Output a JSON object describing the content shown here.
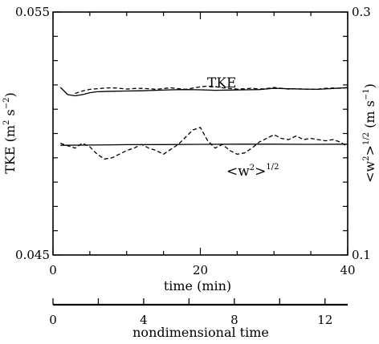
{
  "chart_data": {
    "type": "line",
    "x_axis": {
      "label": "time (min)",
      "lim": [
        0,
        40
      ],
      "ticks": [
        0,
        20,
        40
      ],
      "tick_labels": [
        "0",
        "20",
        "40"
      ],
      "minor_step": 5
    },
    "y_left": {
      "label_prefix": "TKE (m",
      "label_unit_mid": " s",
      "label_suffix": ")",
      "sup1": "2",
      "sup2": "−2",
      "lim": [
        0.045,
        0.055
      ],
      "ticks": [
        0.045,
        0.055
      ],
      "tick_labels": [
        "0.045",
        "0.055"
      ],
      "minor_step": 0.001
    },
    "y_right": {
      "label_prefix": "<w",
      "label_sup_a": "2",
      "label_mid": ">",
      "label_sup_b": "1/2",
      "label_unit": " (m s",
      "label_sup_c": "−1",
      "label_end": ")",
      "lim": [
        0.1,
        0.3
      ],
      "ticks": [
        0.1,
        0.3
      ],
      "tick_labels": [
        "0.1",
        "0.3"
      ],
      "minor_step": 0.02
    },
    "nondim_axis": {
      "label": "nondimensional time",
      "lim": [
        0,
        13
      ],
      "ticks": [
        0,
        4,
        8,
        12
      ],
      "tick_labels": [
        "0",
        "4",
        "8",
        "12"
      ],
      "minor_step": 2
    },
    "annotations": {
      "tke": "TKE",
      "w_open": "<w",
      "w_sup": "2",
      "w_close": ">",
      "w_exp": "1/2"
    },
    "series": [
      {
        "axis": "left",
        "style": "solid",
        "x": [
          1,
          1.5,
          2,
          3,
          4,
          5,
          6,
          8,
          10,
          12,
          14,
          16,
          18,
          20,
          22,
          24,
          26,
          28,
          30,
          32,
          34,
          36,
          38,
          40
        ],
        "y": [
          0.0519,
          0.05175,
          0.0516,
          0.05155,
          0.0516,
          0.05168,
          0.05172,
          0.05174,
          0.05175,
          0.05176,
          0.05178,
          0.0518,
          0.05181,
          0.0518,
          0.05178,
          0.05179,
          0.0518,
          0.05181,
          0.05186,
          0.05184,
          0.05183,
          0.05182,
          0.05185,
          0.05189
        ]
      },
      {
        "axis": "left",
        "style": "dashed",
        "x": [
          3,
          4,
          5,
          6,
          7,
          8,
          9,
          10,
          11,
          12,
          13,
          14,
          15,
          16,
          17,
          18,
          19,
          20,
          21,
          22,
          23,
          24,
          25,
          26,
          27,
          28,
          29,
          30,
          31,
          32,
          33,
          34,
          35,
          36,
          37,
          38,
          39,
          40
        ],
        "y": [
          0.05165,
          0.05175,
          0.05182,
          0.05184,
          0.05187,
          0.05188,
          0.05186,
          0.05183,
          0.05185,
          0.05186,
          0.05184,
          0.05182,
          0.05185,
          0.05188,
          0.05184,
          0.05182,
          0.05187,
          0.05192,
          0.05195,
          0.05193,
          0.05188,
          0.05185,
          0.05183,
          0.05184,
          0.05186,
          0.05183,
          0.05185,
          0.05189,
          0.05186,
          0.05183,
          0.05184,
          0.05183,
          0.05182,
          0.05183,
          0.05186,
          0.05187,
          0.05186,
          0.05188
        ]
      },
      {
        "axis": "right",
        "style": "solid",
        "x": [
          1,
          5,
          10,
          15,
          20,
          25,
          30,
          35,
          40
        ],
        "y": [
          0.1903,
          0.1905,
          0.1908,
          0.1909,
          0.1911,
          0.1912,
          0.1912,
          0.1911,
          0.1912
        ]
      },
      {
        "axis": "right",
        "style": "dashed",
        "x": [
          1,
          2,
          3,
          4,
          5,
          6,
          7,
          8,
          9,
          10,
          11,
          12,
          13,
          14,
          15,
          16,
          17,
          18,
          19,
          20,
          21,
          22,
          23,
          24,
          25,
          26,
          27,
          28,
          29,
          30,
          31,
          32,
          33,
          34,
          35,
          36,
          37,
          38,
          39,
          40
        ],
        "y": [
          0.192,
          0.19,
          0.188,
          0.192,
          0.189,
          0.183,
          0.179,
          0.18,
          0.183,
          0.186,
          0.188,
          0.191,
          0.188,
          0.186,
          0.183,
          0.187,
          0.191,
          0.197,
          0.203,
          0.205,
          0.194,
          0.188,
          0.191,
          0.186,
          0.183,
          0.184,
          0.188,
          0.193,
          0.196,
          0.199,
          0.196,
          0.195,
          0.198,
          0.195,
          0.196,
          0.195,
          0.194,
          0.195,
          0.193,
          0.189
        ]
      }
    ]
  }
}
